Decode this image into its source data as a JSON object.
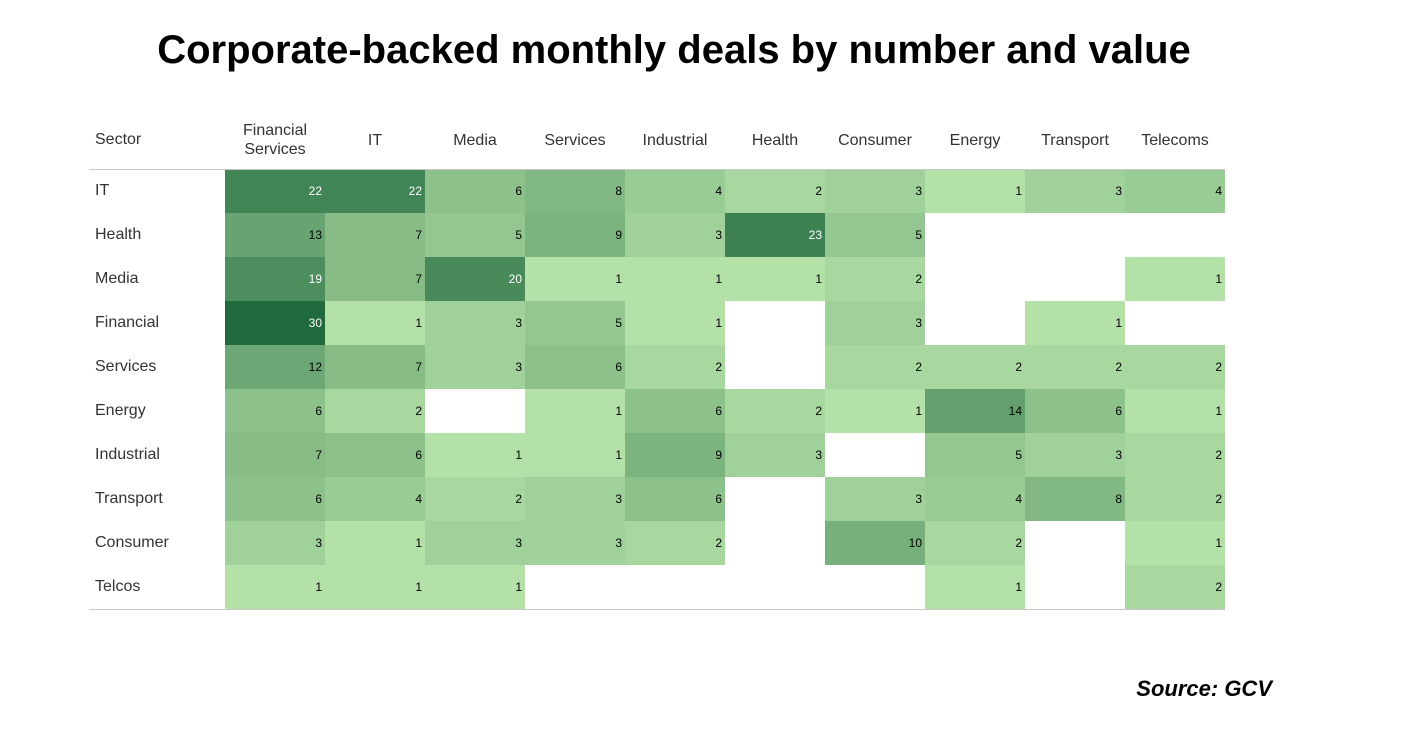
{
  "chart_data": {
    "type": "heatmap",
    "title": "Corporate-backed monthly deals by number and value",
    "row_header": "Sector",
    "columns": [
      "Financial\nServices",
      "IT",
      "Media",
      "Services",
      "Industrial",
      "Health",
      "Consumer",
      "Energy",
      "Transport",
      "Telecoms"
    ],
    "rows": [
      "IT",
      "Health",
      "Media",
      "Financial",
      "Services",
      "Energy",
      "Industrial",
      "Transport",
      "Consumer",
      "Telcos"
    ],
    "values": [
      [
        22,
        22,
        6,
        8,
        4,
        2,
        3,
        1,
        3,
        4
      ],
      [
        13,
        7,
        5,
        9,
        3,
        23,
        5,
        null,
        null,
        null
      ],
      [
        19,
        7,
        20,
        1,
        1,
        1,
        2,
        null,
        null,
        1
      ],
      [
        30,
        1,
        3,
        5,
        1,
        null,
        3,
        null,
        1,
        null
      ],
      [
        12,
        7,
        3,
        6,
        2,
        null,
        2,
        2,
        2,
        2
      ],
      [
        6,
        2,
        null,
        1,
        6,
        2,
        1,
        14,
        6,
        1
      ],
      [
        7,
        6,
        1,
        1,
        9,
        3,
        null,
        5,
        3,
        2
      ],
      [
        6,
        4,
        2,
        3,
        6,
        null,
        3,
        4,
        8,
        2
      ],
      [
        3,
        1,
        3,
        3,
        2,
        null,
        10,
        2,
        null,
        1
      ],
      [
        1,
        1,
        1,
        null,
        null,
        null,
        null,
        1,
        null,
        2
      ]
    ],
    "color_scale": {
      "low": "#b4e1a8",
      "high": "#216a3e",
      "min": 1,
      "max": 30
    },
    "empty_color": "#ffffff",
    "legend": "none",
    "grid": false
  },
  "source": "Source: GCV"
}
